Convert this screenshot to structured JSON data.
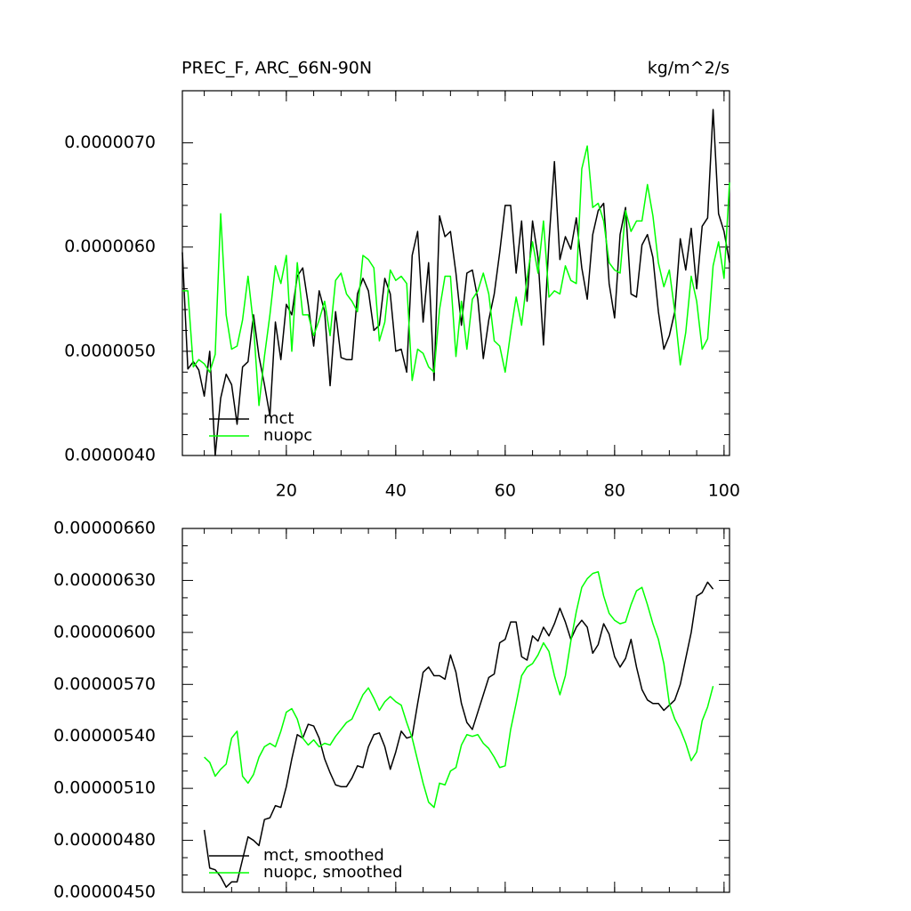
{
  "chart_data": [
    {
      "type": "line",
      "title": "PREC_F, ARC_66N-90N",
      "right_title": "kg/m^2/s",
      "x": [
        1,
        2,
        3,
        4,
        5,
        6,
        7,
        8,
        9,
        10,
        11,
        12,
        13,
        14,
        15,
        16,
        17,
        18,
        19,
        20,
        21,
        22,
        23,
        24,
        25,
        26,
        27,
        28,
        29,
        30,
        31,
        32,
        33,
        34,
        35,
        36,
        37,
        38,
        39,
        40,
        41,
        42,
        43,
        44,
        45,
        46,
        47,
        48,
        49,
        50,
        51,
        52,
        53,
        54,
        55,
        56,
        57,
        58,
        59,
        60,
        61,
        62,
        63,
        64,
        65,
        66,
        67,
        68,
        69,
        70,
        71,
        72,
        73,
        74,
        75,
        76,
        77,
        78,
        79,
        80,
        81,
        82,
        83,
        84,
        85,
        86,
        87,
        88,
        89,
        90,
        91,
        92,
        93,
        94,
        95,
        96,
        97,
        98,
        99,
        100,
        101
      ],
      "xlim": [
        1,
        101
      ],
      "xticks": [
        20,
        40,
        60,
        80,
        100
      ],
      "ylim": [
        4e-06,
        7.5e-06
      ],
      "yticks": [
        {
          "value": 4e-06,
          "label": "0.0000040"
        },
        {
          "value": 5e-06,
          "label": "0.0000050"
        },
        {
          "value": 6e-06,
          "label": "0.0000060"
        },
        {
          "value": 7e-06,
          "label": "0.0000070"
        }
      ],
      "legend": "lower left",
      "series": [
        {
          "name": "mct",
          "color": "#000000",
          "values": [
            5.95e-06,
            4.83e-06,
            4.9e-06,
            4.82e-06,
            4.57e-06,
            5e-06,
            4e-06,
            4.55e-06,
            4.78e-06,
            4.68e-06,
            4.3e-06,
            4.85e-06,
            4.9e-06,
            5.35e-06,
            4.95e-06,
            4.68e-06,
            4.38e-06,
            5.28e-06,
            4.92e-06,
            5.45e-06,
            5.35e-06,
            5.72e-06,
            5.8e-06,
            5.45e-06,
            5.05e-06,
            5.58e-06,
            5.38e-06,
            4.67e-06,
            5.38e-06,
            4.94e-06,
            4.92e-06,
            4.92e-06,
            5.55e-06,
            5.7e-06,
            5.58e-06,
            5.2e-06,
            5.25e-06,
            5.7e-06,
            5.55e-06,
            5e-06,
            5.02e-06,
            4.8e-06,
            5.92e-06,
            6.15e-06,
            5.28e-06,
            5.85e-06,
            4.72e-06,
            6.3e-06,
            6.1e-06,
            6.15e-06,
            5.75e-06,
            5.25e-06,
            5.75e-06,
            5.78e-06,
            5.5e-06,
            4.93e-06,
            5.3e-06,
            5.55e-06,
            5.95e-06,
            6.4e-06,
            6.4e-06,
            5.75e-06,
            6.25e-06,
            5.48e-06,
            6.25e-06,
            5.9e-06,
            5.06e-06,
            6.05e-06,
            6.82e-06,
            5.88e-06,
            6.1e-06,
            5.98e-06,
            6.28e-06,
            5.8e-06,
            5.5e-06,
            6.12e-06,
            6.35e-06,
            6.42e-06,
            5.65e-06,
            5.32e-06,
            6.12e-06,
            6.38e-06,
            5.55e-06,
            5.52e-06,
            6.02e-06,
            6.12e-06,
            5.9e-06,
            5.38e-06,
            5.02e-06,
            5.15e-06,
            5.38e-06,
            6.08e-06,
            5.78e-06,
            6.18e-06,
            5.6e-06,
            6.2e-06,
            6.28e-06,
            7.32e-06,
            6.32e-06,
            6.15e-06,
            5.85e-06
          ]
        },
        {
          "name": "nuopc",
          "color": "#00ff00",
          "values": [
            5.58e-06,
            5.58e-06,
            4.85e-06,
            4.92e-06,
            4.88e-06,
            4.8e-06,
            4.97e-06,
            6.32e-06,
            5.35e-06,
            5.02e-06,
            5.05e-06,
            5.3e-06,
            5.72e-06,
            5.25e-06,
            4.48e-06,
            4.95e-06,
            5.35e-06,
            5.82e-06,
            5.65e-06,
            5.92e-06,
            5e-06,
            5.85e-06,
            5.35e-06,
            5.35e-06,
            5.15e-06,
            5.3e-06,
            5.48e-06,
            5.15e-06,
            5.68e-06,
            5.75e-06,
            5.55e-06,
            5.48e-06,
            5.38e-06,
            5.92e-06,
            5.88e-06,
            5.8e-06,
            5.1e-06,
            5.28e-06,
            5.78e-06,
            5.68e-06,
            5.72e-06,
            5.65e-06,
            4.72e-06,
            5.02e-06,
            4.98e-06,
            4.85e-06,
            4.8e-06,
            5.4e-06,
            5.72e-06,
            5.72e-06,
            4.95e-06,
            5.48e-06,
            5.02e-06,
            5.5e-06,
            5.58e-06,
            5.75e-06,
            5.55e-06,
            5.1e-06,
            5.05e-06,
            4.8e-06,
            5.18e-06,
            5.52e-06,
            5.25e-06,
            5.7e-06,
            6.05e-06,
            5.75e-06,
            6.25e-06,
            5.52e-06,
            5.58e-06,
            5.55e-06,
            5.82e-06,
            5.68e-06,
            5.65e-06,
            6.75e-06,
            6.97e-06,
            6.38e-06,
            6.42e-06,
            6.25e-06,
            5.85e-06,
            5.78e-06,
            5.75e-06,
            6.35e-06,
            6.15e-06,
            6.25e-06,
            6.25e-06,
            6.6e-06,
            6.3e-06,
            5.85e-06,
            5.62e-06,
            5.78e-06,
            5.38e-06,
            4.87e-06,
            5.18e-06,
            5.72e-06,
            5.48e-06,
            5.02e-06,
            5.12e-06,
            5.82e-06,
            6.05e-06,
            5.7e-06,
            6.62e-06
          ]
        }
      ]
    },
    {
      "type": "line",
      "x": [
        1,
        2,
        3,
        4,
        5,
        6,
        7,
        8,
        9,
        10,
        11,
        12,
        13,
        14,
        15,
        16,
        17,
        18,
        19,
        20,
        21,
        22,
        23,
        24,
        25,
        26,
        27,
        28,
        29,
        30,
        31,
        32,
        33,
        34,
        35,
        36,
        37,
        38,
        39,
        40,
        41,
        42,
        43,
        44,
        45,
        46,
        47,
        48,
        49,
        50,
        51,
        52,
        53,
        54,
        55,
        56,
        57,
        58,
        59,
        60,
        61,
        62,
        63,
        64,
        65,
        66,
        67,
        68,
        69,
        70,
        71,
        72,
        73,
        74,
        75,
        76,
        77,
        78,
        79,
        80,
        81,
        82,
        83,
        84,
        85,
        86,
        87,
        88,
        89,
        90,
        91,
        92,
        93,
        94,
        95,
        96,
        97,
        98,
        99,
        100,
        101
      ],
      "xlim": [
        1,
        101
      ],
      "xticks": [
        20,
        40,
        60,
        80,
        100
      ],
      "ylim": [
        4.5e-06,
        6.6e-06
      ],
      "yticks": [
        {
          "value": 4.5e-06,
          "label": "0.00000450"
        },
        {
          "value": 4.8e-06,
          "label": "0.00000480"
        },
        {
          "value": 5.1e-06,
          "label": "0.00000510"
        },
        {
          "value": 5.4e-06,
          "label": "0.00000540"
        },
        {
          "value": 5.7e-06,
          "label": "0.00000570"
        },
        {
          "value": 6e-06,
          "label": "0.00000600"
        },
        {
          "value": 6.3e-06,
          "label": "0.00000630"
        },
        {
          "value": 6.6e-06,
          "label": "0.00000660"
        }
      ],
      "legend": "lower left",
      "series": [
        {
          "name": "mct, smoothed",
          "color": "#000000",
          "values": [
            null,
            null,
            null,
            null,
            4.86e-06,
            4.64e-06,
            4.63e-06,
            4.59e-06,
            4.53e-06,
            4.56e-06,
            4.56e-06,
            4.69e-06,
            4.82e-06,
            4.8e-06,
            4.77e-06,
            4.92e-06,
            4.93e-06,
            5e-06,
            4.99e-06,
            5.11e-06,
            5.27e-06,
            5.41e-06,
            5.39e-06,
            5.47e-06,
            5.46e-06,
            5.39e-06,
            5.27e-06,
            5.19e-06,
            5.12e-06,
            5.11e-06,
            5.11e-06,
            5.16e-06,
            5.23e-06,
            5.22e-06,
            5.34e-06,
            5.41e-06,
            5.42e-06,
            5.34e-06,
            5.21e-06,
            5.31e-06,
            5.43e-06,
            5.39e-06,
            5.4e-06,
            5.59e-06,
            5.77e-06,
            5.8e-06,
            5.75e-06,
            5.75e-06,
            5.73e-06,
            5.87e-06,
            5.77e-06,
            5.59e-06,
            5.48e-06,
            5.44e-06,
            5.54e-06,
            5.64e-06,
            5.74e-06,
            5.76e-06,
            5.94e-06,
            5.96e-06,
            6.06e-06,
            6.06e-06,
            5.86e-06,
            5.84e-06,
            5.98e-06,
            5.95e-06,
            6.03e-06,
            5.98e-06,
            6.05e-06,
            6.14e-06,
            6.06e-06,
            5.96e-06,
            6.03e-06,
            6.07e-06,
            6.03e-06,
            5.88e-06,
            5.93e-06,
            6.05e-06,
            5.99e-06,
            5.86e-06,
            5.8e-06,
            5.85e-06,
            5.96e-06,
            5.8e-06,
            5.67e-06,
            5.61e-06,
            5.59e-06,
            5.59e-06,
            5.55e-06,
            5.58e-06,
            5.61e-06,
            5.7e-06,
            5.85e-06,
            6e-06,
            6.21e-06,
            6.23e-06,
            6.29e-06,
            6.25e-06,
            null,
            null,
            null
          ]
        },
        {
          "name": "nuopc, smoothed",
          "color": "#00ff00",
          "values": [
            null,
            null,
            null,
            null,
            5.28e-06,
            5.25e-06,
            5.17e-06,
            5.21e-06,
            5.24e-06,
            5.39e-06,
            5.43e-06,
            5.17e-06,
            5.13e-06,
            5.18e-06,
            5.28e-06,
            5.34e-06,
            5.36e-06,
            5.34e-06,
            5.43e-06,
            5.54e-06,
            5.56e-06,
            5.5e-06,
            5.39e-06,
            5.35e-06,
            5.38e-06,
            5.34e-06,
            5.36e-06,
            5.35e-06,
            5.4e-06,
            5.44e-06,
            5.48e-06,
            5.5e-06,
            5.57e-06,
            5.64e-06,
            5.68e-06,
            5.62e-06,
            5.55e-06,
            5.6e-06,
            5.63e-06,
            5.6e-06,
            5.58e-06,
            5.48e-06,
            5.39e-06,
            5.26e-06,
            5.13e-06,
            5.02e-06,
            4.99e-06,
            5.13e-06,
            5.12e-06,
            5.2e-06,
            5.22e-06,
            5.35e-06,
            5.41e-06,
            5.4e-06,
            5.41e-06,
            5.36e-06,
            5.33e-06,
            5.28e-06,
            5.22e-06,
            5.23e-06,
            5.44e-06,
            5.59e-06,
            5.75e-06,
            5.8e-06,
            5.82e-06,
            5.87e-06,
            5.94e-06,
            5.89e-06,
            5.75e-06,
            5.64e-06,
            5.75e-06,
            5.95e-06,
            6.12e-06,
            6.26e-06,
            6.31e-06,
            6.34e-06,
            6.35e-06,
            6.21e-06,
            6.11e-06,
            6.07e-06,
            6.05e-06,
            6.06e-06,
            6.16e-06,
            6.24e-06,
            6.26e-06,
            6.16e-06,
            6.05e-06,
            5.96e-06,
            5.82e-06,
            5.59e-06,
            5.5e-06,
            5.44e-06,
            5.36e-06,
            5.26e-06,
            5.31e-06,
            5.49e-06,
            5.57e-06,
            5.69e-06,
            null,
            null,
            null
          ]
        }
      ]
    }
  ]
}
